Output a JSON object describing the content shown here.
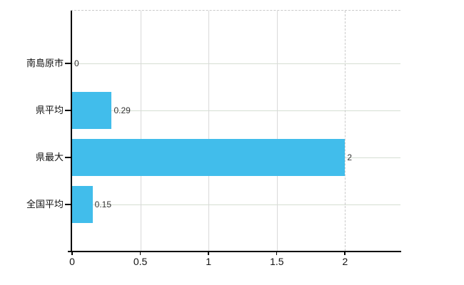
{
  "chart_data": {
    "type": "bar",
    "orientation": "horizontal",
    "title": "",
    "categories": [
      "南島原市",
      "県平均",
      "県最大",
      "全国平均"
    ],
    "values": [
      0,
      0.29,
      2,
      0.15
    ],
    "value_labels": [
      "0",
      "0.29",
      "2",
      "0.15"
    ],
    "x_ticks": [
      0,
      0.5,
      1,
      1.5,
      2
    ],
    "x_tick_labels": [
      "0",
      "0.5",
      "1",
      "1.5",
      "2"
    ],
    "xlim": [
      0,
      2.4
    ],
    "grid": true,
    "legend": false,
    "dashed_line_at_value": 2,
    "top_border_dashed": true,
    "colors": {
      "bar": "#41bdeb",
      "axis": "#000000",
      "category_label": "#111111",
      "value_label": "#333333",
      "x_tick_label": "#111111",
      "h_gridline": "#d5ded2",
      "v_gridline": "#d9d9d9",
      "dashed_line": "#c9c9c9",
      "background": "#ffffff"
    }
  }
}
